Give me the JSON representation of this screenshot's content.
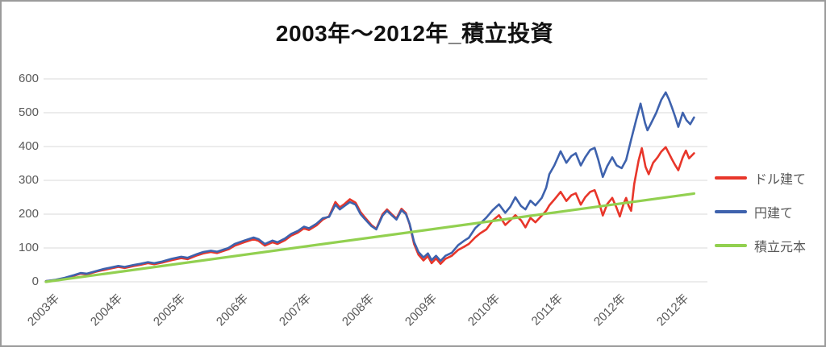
{
  "window": {
    "background": "#ffffff",
    "border_color": "#9b9b9b"
  },
  "chart": {
    "title": "2003年〜2012年_積立投資",
    "text_color": "#595959",
    "gridline_color": "#d9d9d9"
  },
  "legend": {
    "position": "right",
    "items": [
      {
        "label": "ドル建て",
        "color": "#e8362a"
      },
      {
        "label": "円建て",
        "color": "#3e62ad"
      },
      {
        "label": "積立元本",
        "color": "#92d050"
      }
    ]
  },
  "chart_data": {
    "type": "line",
    "title": "2003年〜2012年_積立投資",
    "ylim": [
      0,
      600
    ],
    "y_ticks": [
      0,
      100,
      200,
      300,
      400,
      500,
      600
    ],
    "grid": "horizontal",
    "legend_position": "right",
    "x_tick_labels": [
      "2003年",
      "2004年",
      "2005年",
      "2006年",
      "2007年",
      "2008年",
      "2009年",
      "2010年",
      "2011年",
      "2012年",
      "2012年"
    ],
    "x_unit": "years-from-2003 (one tick per label)",
    "series": [
      {
        "name": "ドル建て",
        "color": "#e8362a",
        "width": 2.6,
        "points": [
          [
            0,
            2
          ],
          [
            0.15,
            5
          ],
          [
            0.3,
            10
          ],
          [
            0.45,
            18
          ],
          [
            0.55,
            24
          ],
          [
            0.65,
            22
          ],
          [
            0.8,
            30
          ],
          [
            0.92,
            35
          ],
          [
            1.0,
            38
          ],
          [
            1.15,
            44
          ],
          [
            1.25,
            41
          ],
          [
            1.4,
            47
          ],
          [
            1.5,
            50
          ],
          [
            1.62,
            55
          ],
          [
            1.72,
            52
          ],
          [
            1.85,
            57
          ],
          [
            2.0,
            64
          ],
          [
            2.15,
            70
          ],
          [
            2.25,
            67
          ],
          [
            2.4,
            78
          ],
          [
            2.5,
            84
          ],
          [
            2.62,
            88
          ],
          [
            2.72,
            85
          ],
          [
            2.9,
            96
          ],
          [
            3.0,
            107
          ],
          [
            3.15,
            117
          ],
          [
            3.3,
            126
          ],
          [
            3.38,
            121
          ],
          [
            3.48,
            107
          ],
          [
            3.6,
            117
          ],
          [
            3.68,
            112
          ],
          [
            3.8,
            123
          ],
          [
            3.9,
            137
          ],
          [
            4.0,
            145
          ],
          [
            4.1,
            158
          ],
          [
            4.18,
            153
          ],
          [
            4.3,
            167
          ],
          [
            4.4,
            184
          ],
          [
            4.5,
            194
          ],
          [
            4.6,
            236
          ],
          [
            4.67,
            220
          ],
          [
            4.75,
            231
          ],
          [
            4.83,
            244
          ],
          [
            4.92,
            234
          ],
          [
            5.0,
            206
          ],
          [
            5.07,
            190
          ],
          [
            5.17,
            168
          ],
          [
            5.25,
            157
          ],
          [
            5.35,
            200
          ],
          [
            5.42,
            214
          ],
          [
            5.5,
            199
          ],
          [
            5.57,
            187
          ],
          [
            5.65,
            216
          ],
          [
            5.72,
            203
          ],
          [
            5.78,
            170
          ],
          [
            5.85,
            112
          ],
          [
            5.92,
            80
          ],
          [
            6.0,
            63
          ],
          [
            6.07,
            76
          ],
          [
            6.13,
            55
          ],
          [
            6.2,
            69
          ],
          [
            6.27,
            53
          ],
          [
            6.35,
            68
          ],
          [
            6.45,
            77
          ],
          [
            6.55,
            94
          ],
          [
            6.65,
            104
          ],
          [
            6.72,
            112
          ],
          [
            6.82,
            131
          ],
          [
            6.9,
            143
          ],
          [
            7.0,
            155
          ],
          [
            7.1,
            181
          ],
          [
            7.2,
            197
          ],
          [
            7.3,
            168
          ],
          [
            7.38,
            182
          ],
          [
            7.46,
            197
          ],
          [
            7.55,
            182
          ],
          [
            7.62,
            161
          ],
          [
            7.7,
            189
          ],
          [
            7.78,
            176
          ],
          [
            7.88,
            196
          ],
          [
            7.95,
            210
          ],
          [
            8.0,
            226
          ],
          [
            8.08,
            243
          ],
          [
            8.18,
            266
          ],
          [
            8.27,
            239
          ],
          [
            8.35,
            256
          ],
          [
            8.42,
            262
          ],
          [
            8.5,
            228
          ],
          [
            8.57,
            250
          ],
          [
            8.65,
            266
          ],
          [
            8.72,
            271
          ],
          [
            8.78,
            242
          ],
          [
            8.85,
            196
          ],
          [
            8.92,
            230
          ],
          [
            9.0,
            248
          ],
          [
            9.07,
            218
          ],
          [
            9.12,
            193
          ],
          [
            9.18,
            230
          ],
          [
            9.22,
            248
          ],
          [
            9.26,
            225
          ],
          [
            9.3,
            210
          ],
          [
            9.35,
            290
          ],
          [
            9.42,
            360
          ],
          [
            9.47,
            395
          ],
          [
            9.53,
            340
          ],
          [
            9.58,
            318
          ],
          [
            9.65,
            352
          ],
          [
            9.72,
            368
          ],
          [
            9.78,
            385
          ],
          [
            9.85,
            398
          ],
          [
            9.9,
            380
          ],
          [
            9.95,
            362
          ],
          [
            10.0,
            345
          ],
          [
            10.05,
            330
          ],
          [
            10.12,
            368
          ],
          [
            10.17,
            388
          ],
          [
            10.22,
            365
          ],
          [
            10.3,
            380
          ]
        ]
      },
      {
        "name": "円建て",
        "color": "#3e62ad",
        "width": 2.6,
        "points": [
          [
            0,
            2
          ],
          [
            0.15,
            6
          ],
          [
            0.3,
            12
          ],
          [
            0.45,
            20
          ],
          [
            0.55,
            26
          ],
          [
            0.65,
            24
          ],
          [
            0.8,
            32
          ],
          [
            0.92,
            38
          ],
          [
            1.0,
            41
          ],
          [
            1.15,
            47
          ],
          [
            1.25,
            44
          ],
          [
            1.4,
            50
          ],
          [
            1.5,
            53
          ],
          [
            1.62,
            58
          ],
          [
            1.72,
            55
          ],
          [
            1.85,
            60
          ],
          [
            2.0,
            68
          ],
          [
            2.15,
            74
          ],
          [
            2.25,
            71
          ],
          [
            2.4,
            82
          ],
          [
            2.5,
            88
          ],
          [
            2.62,
            92
          ],
          [
            2.72,
            89
          ],
          [
            2.9,
            100
          ],
          [
            3.0,
            112
          ],
          [
            3.15,
            122
          ],
          [
            3.3,
            131
          ],
          [
            3.38,
            126
          ],
          [
            3.48,
            112
          ],
          [
            3.6,
            122
          ],
          [
            3.68,
            117
          ],
          [
            3.8,
            128
          ],
          [
            3.9,
            142
          ],
          [
            4.0,
            150
          ],
          [
            4.1,
            163
          ],
          [
            4.18,
            158
          ],
          [
            4.3,
            172
          ],
          [
            4.4,
            188
          ],
          [
            4.5,
            192
          ],
          [
            4.6,
            228
          ],
          [
            4.67,
            214
          ],
          [
            4.75,
            225
          ],
          [
            4.83,
            236
          ],
          [
            4.92,
            228
          ],
          [
            5.0,
            200
          ],
          [
            5.07,
            185
          ],
          [
            5.17,
            165
          ],
          [
            5.25,
            155
          ],
          [
            5.35,
            196
          ],
          [
            5.42,
            210
          ],
          [
            5.5,
            196
          ],
          [
            5.57,
            184
          ],
          [
            5.65,
            212
          ],
          [
            5.72,
            200
          ],
          [
            5.78,
            172
          ],
          [
            5.85,
            118
          ],
          [
            5.92,
            88
          ],
          [
            6.0,
            72
          ],
          [
            6.07,
            84
          ],
          [
            6.13,
            64
          ],
          [
            6.2,
            77
          ],
          [
            6.27,
            62
          ],
          [
            6.35,
            77
          ],
          [
            6.45,
            86
          ],
          [
            6.55,
            108
          ],
          [
            6.65,
            122
          ],
          [
            6.72,
            130
          ],
          [
            6.82,
            158
          ],
          [
            6.9,
            172
          ],
          [
            7.0,
            190
          ],
          [
            7.1,
            212
          ],
          [
            7.2,
            229
          ],
          [
            7.3,
            204
          ],
          [
            7.38,
            222
          ],
          [
            7.46,
            250
          ],
          [
            7.55,
            224
          ],
          [
            7.62,
            214
          ],
          [
            7.7,
            240
          ],
          [
            7.78,
            226
          ],
          [
            7.88,
            248
          ],
          [
            7.95,
            278
          ],
          [
            8.0,
            318
          ],
          [
            8.08,
            344
          ],
          [
            8.18,
            386
          ],
          [
            8.27,
            352
          ],
          [
            8.35,
            372
          ],
          [
            8.42,
            380
          ],
          [
            8.5,
            344
          ],
          [
            8.57,
            368
          ],
          [
            8.65,
            390
          ],
          [
            8.72,
            396
          ],
          [
            8.78,
            360
          ],
          [
            8.85,
            310
          ],
          [
            8.92,
            342
          ],
          [
            9.0,
            368
          ],
          [
            9.07,
            344
          ],
          [
            9.15,
            336
          ],
          [
            9.22,
            360
          ],
          [
            9.3,
            420
          ],
          [
            9.38,
            478
          ],
          [
            9.45,
            527
          ],
          [
            9.52,
            470
          ],
          [
            9.56,
            448
          ],
          [
            9.62,
            470
          ],
          [
            9.7,
            500
          ],
          [
            9.78,
            538
          ],
          [
            9.85,
            560
          ],
          [
            9.9,
            540
          ],
          [
            9.95,
            515
          ],
          [
            10.0,
            488
          ],
          [
            10.05,
            458
          ],
          [
            10.12,
            500
          ],
          [
            10.18,
            478
          ],
          [
            10.24,
            466
          ],
          [
            10.3,
            486
          ]
        ]
      },
      {
        "name": "積立元本",
        "color": "#92d050",
        "width": 3.2,
        "points": [
          [
            0,
            0
          ],
          [
            10.3,
            261
          ]
        ]
      }
    ]
  }
}
